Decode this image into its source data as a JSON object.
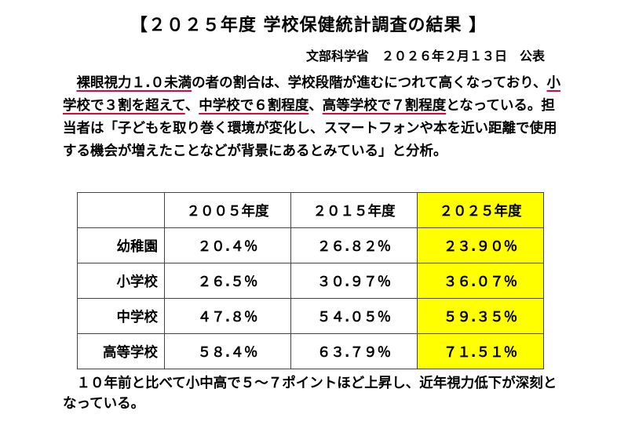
{
  "title": "【２０２５年度 学校保健統計調査の結果 】",
  "byline": "文部科学省　２０２６年２月１３日　公表",
  "paragraph": {
    "p1_u1": "裸眼視力１.０未満",
    "p1_t1": "の者の割合は、学校段階が進むにつれて高くなっており、",
    "p1_u2": "小学校で３割を超えて",
    "p1_t2": "、",
    "p1_u3": "中学校で６割程度",
    "p1_t3": "、",
    "p1_u4": "高等学校で７割程度",
    "p1_t4": "となっている。担当者は「子どもを取り巻く環境が変化し、スマートフォンや本を近い距離で使用する機会が増えたことなどが背景にあるとみている」と分析。"
  },
  "table": {
    "headers": [
      "",
      "２００５年度",
      "２０１５年度",
      "２０２５年度"
    ],
    "rows": [
      [
        "幼稚園",
        "２０.４％",
        "２６.８２％",
        "２３.９０％"
      ],
      [
        "小学校",
        "２６.５％",
        "３０.９７％",
        "３６.０７％"
      ],
      [
        "中学校",
        "４７.８％",
        "５４.０５％",
        "５９.３５％"
      ],
      [
        "高等学校",
        "５８.４％",
        "６３.７９％",
        "７１.５１％"
      ]
    ],
    "highlight_color": "#ffff00"
  },
  "footer": "　１０年前と比べて小中高で５～７ポイントほど上昇し、近年視力低下が深刻となっている。",
  "colors": {
    "underline": "#e6003c"
  }
}
